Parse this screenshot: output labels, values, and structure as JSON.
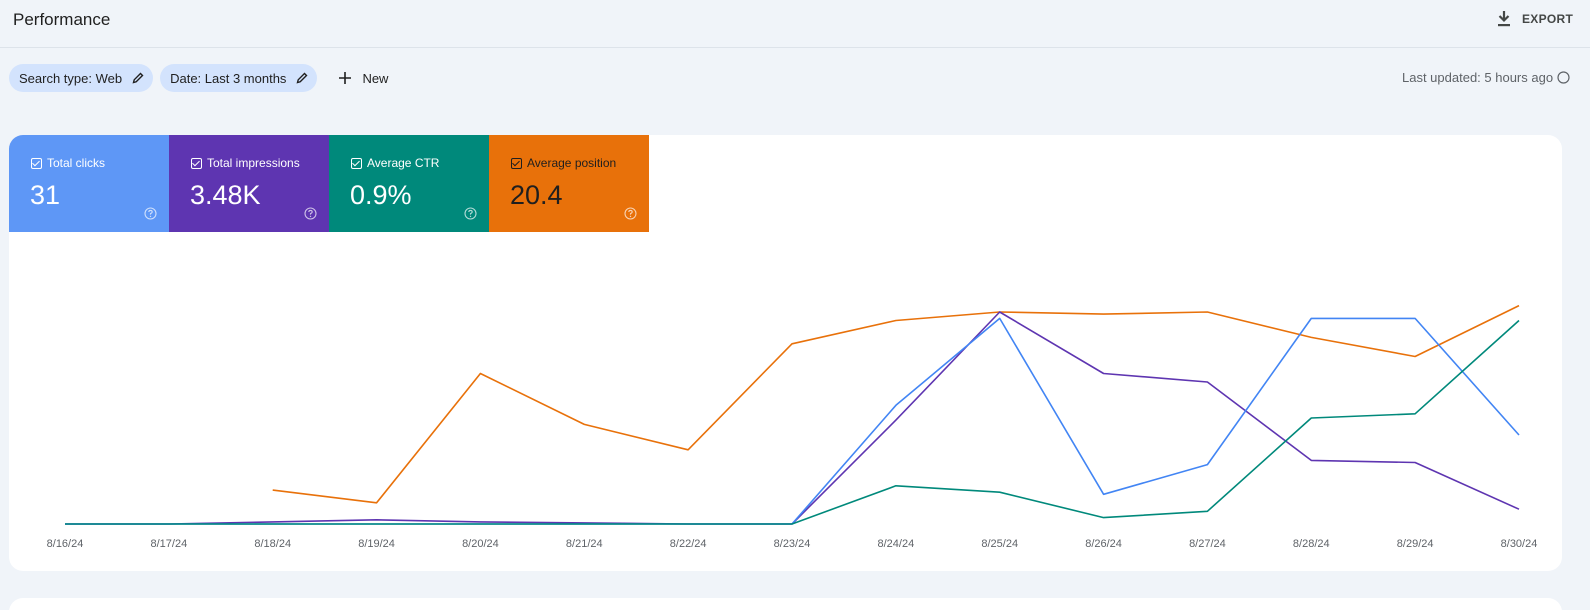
{
  "header": {
    "title": "Performance",
    "export_label": "EXPORT"
  },
  "filters": {
    "chips": [
      {
        "label": "Search type: Web"
      },
      {
        "label": "Date: Last 3 months"
      }
    ],
    "new_label": "New",
    "last_updated": "Last updated: 5 hours ago"
  },
  "metrics": [
    {
      "label": "Total clicks",
      "value": "31",
      "color": "#5e97f6"
    },
    {
      "label": "Total impressions",
      "value": "3.48K",
      "color": "#5e35b1"
    },
    {
      "label": "Average CTR",
      "value": "0.9%",
      "color": "#00897b"
    },
    {
      "label": "Average position",
      "value": "20.4",
      "color": "#e8710a"
    }
  ],
  "chart_data": {
    "type": "line",
    "x": [
      "8/16/24",
      "8/17/24",
      "8/18/24",
      "8/19/24",
      "8/20/24",
      "8/21/24",
      "8/22/24",
      "8/23/24",
      "8/24/24",
      "8/25/24",
      "8/26/24",
      "8/27/24",
      "8/28/24",
      "8/29/24",
      "8/30/24"
    ],
    "ylim": [
      0,
      100
    ],
    "grid": false,
    "series": [
      {
        "color": "#e8710a",
        "values": [
          null,
          null,
          16,
          10,
          71,
          47,
          35,
          85,
          96,
          100,
          99,
          100,
          88,
          79,
          103
        ]
      },
      {
        "color": "#5e35b1",
        "values": [
          0,
          0,
          1,
          2,
          1,
          0.5,
          0,
          0,
          49,
          100,
          71,
          67,
          30,
          29,
          7
        ]
      },
      {
        "color": "#4285f4",
        "values": [
          0,
          0,
          0,
          0,
          0,
          0,
          0,
          0,
          56,
          97,
          14,
          28,
          97,
          97,
          42
        ]
      },
      {
        "color": "#00897b",
        "values": [
          0,
          0,
          0,
          0,
          0,
          0,
          0,
          0,
          18,
          15,
          3,
          6,
          50,
          52,
          96
        ]
      }
    ]
  }
}
